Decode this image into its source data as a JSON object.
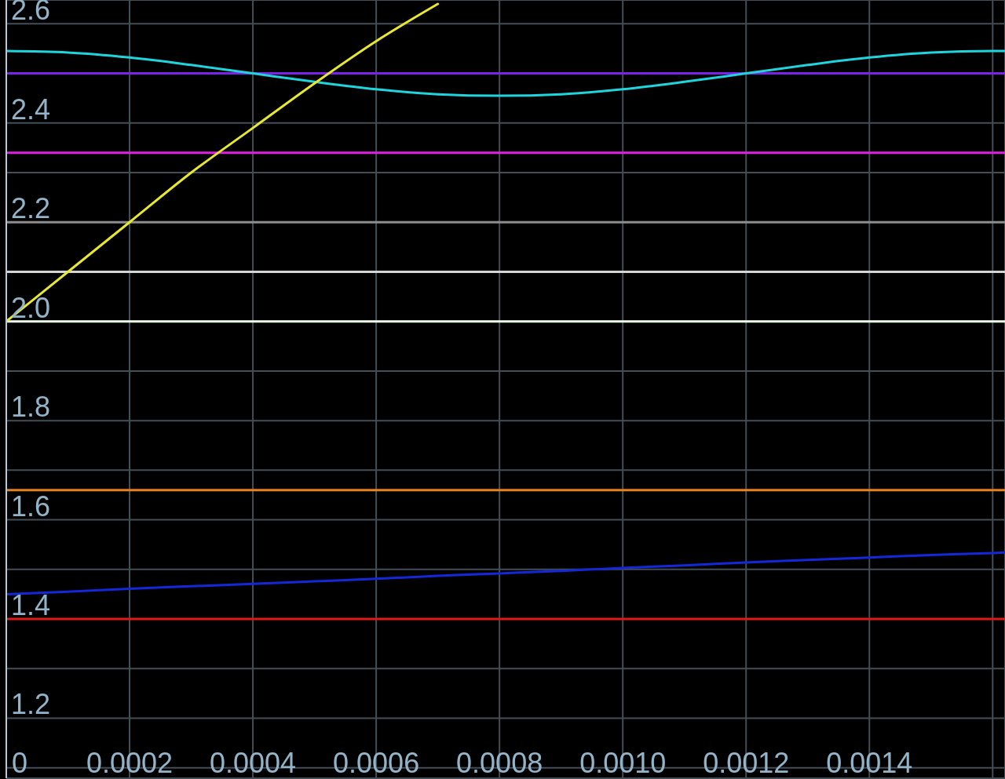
{
  "chart_data": {
    "type": "line",
    "x": [
      0,
      0.0001,
      0.0002,
      0.0003,
      0.0004,
      0.0005,
      0.0006,
      0.0007,
      0.0008,
      0.0009,
      0.001,
      0.0011,
      0.0012,
      0.0013,
      0.0014,
      0.0015,
      0.0016,
      0.00162
    ],
    "series": [
      {
        "color": "#e01818",
        "values": [
          1.4,
          1.4,
          1.4,
          1.4,
          1.4,
          1.4,
          1.4,
          1.4,
          1.4,
          1.4,
          1.4,
          1.4,
          1.4,
          1.4,
          1.4,
          1.4,
          1.4,
          1.4
        ]
      },
      {
        "color": "#e8821e",
        "values": [
          1.66,
          1.66,
          1.66,
          1.66,
          1.66,
          1.66,
          1.66,
          1.66,
          1.66,
          1.66,
          1.66,
          1.66,
          1.66,
          1.66,
          1.66,
          1.66,
          1.66,
          1.66
        ]
      },
      {
        "color": "#eefbe8",
        "values": [
          2,
          2,
          2,
          2,
          2,
          2,
          2,
          2,
          2,
          2,
          2,
          2,
          2,
          2,
          2,
          2,
          2,
          2
        ]
      },
      {
        "color": "#d4d4d4",
        "values": [
          2.1,
          2.1,
          2.1,
          2.1,
          2.1,
          2.1,
          2.1,
          2.1,
          2.1,
          2.1,
          2.1,
          2.1,
          2.1,
          2.1,
          2.1,
          2.1,
          2.1,
          2.1
        ]
      },
      {
        "color": "#8c8c8c",
        "values": [
          2.2,
          2.2,
          2.2,
          2.2,
          2.2,
          2.2,
          2.2,
          2.2,
          2.2,
          2.2,
          2.2,
          2.2,
          2.2,
          2.2,
          2.2,
          2.2,
          2.2,
          2.2
        ]
      },
      {
        "color": "#e020e0",
        "values": [
          2.34,
          2.34,
          2.34,
          2.34,
          2.34,
          2.34,
          2.34,
          2.34,
          2.34,
          2.34,
          2.34,
          2.34,
          2.34,
          2.34,
          2.34,
          2.34,
          2.34,
          2.34
        ]
      },
      {
        "color": "#7a22e8",
        "values": [
          2.5,
          2.5,
          2.5,
          2.5,
          2.5,
          2.5,
          2.5,
          2.5,
          2.5,
          2.5,
          2.5,
          2.5,
          2.5,
          2.5,
          2.5,
          2.5,
          2.5,
          2.5
        ]
      },
      {
        "color": "#1428d8",
        "values": [
          1.45,
          1.455,
          1.461,
          1.466,
          1.471,
          1.476,
          1.481,
          1.487,
          1.492,
          1.497,
          1.503,
          1.508,
          1.514,
          1.519,
          1.524,
          1.529,
          1.533,
          1.534
        ]
      },
      {
        "color": "#20d4dc",
        "values": [
          2.545,
          2.542,
          2.532,
          2.517,
          2.5,
          2.483,
          2.468,
          2.458,
          2.455,
          2.458,
          2.468,
          2.483,
          2.5,
          2.517,
          2.532,
          2.542,
          2.545,
          2.545
        ]
      },
      {
        "color": "#e8e830",
        "x": [
          0,
          0.0001,
          0.0002,
          0.0003,
          0.0004,
          0.0005,
          0.0006,
          0.0007
        ],
        "values": [
          2,
          2.1,
          2.2,
          2.3,
          2.39,
          2.48,
          2.565,
          2.64
        ]
      }
    ],
    "xlim": [
      0,
      0.00162
    ],
    "xticks": [
      0,
      0.0002,
      0.0004,
      0.0006,
      0.0008,
      {
        "value": 0.001,
        "label": "0.0010"
      },
      0.0012,
      0.0014,
      {
        "value": 0.0016,
        "label": null
      }
    ],
    "ylim": [
      1.079,
      2.648
    ],
    "yticks": [
      {
        "value": 1.1,
        "label": null
      },
      1.2,
      {
        "value": 1.3,
        "label": null
      },
      1.4,
      {
        "value": 1.5,
        "label": null
      },
      1.6,
      {
        "value": 1.7,
        "label": null
      },
      1.8,
      {
        "value": 1.9,
        "label": null
      },
      {
        "value": 2,
        "label": "2.0"
      },
      2.2,
      {
        "value": 2.3,
        "label": null
      },
      2.4,
      2.6
    ],
    "grid": true
  }
}
